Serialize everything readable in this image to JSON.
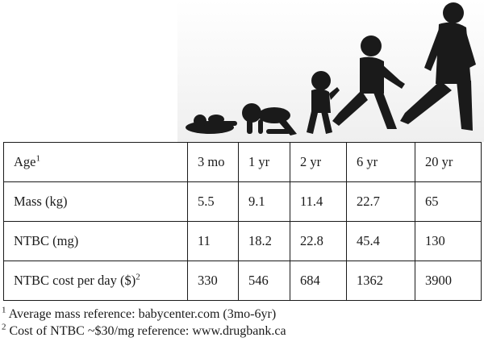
{
  "figure": {
    "icons": [
      "infant-lying-silhouette",
      "crawling-baby-silhouette",
      "toddler-silhouette",
      "child-running-silhouette",
      "adult-walking-silhouette"
    ]
  },
  "table": {
    "columns": [
      {
        "label": "Age",
        "sup": "1"
      },
      {
        "label": "3 mo"
      },
      {
        "label": "1 yr"
      },
      {
        "label": "2 yr"
      },
      {
        "label": "6 yr"
      },
      {
        "label": "20 yr"
      }
    ],
    "rows": [
      {
        "label": "Mass (kg)",
        "sup": "",
        "values": [
          "5.5",
          "9.1",
          "11.4",
          "22.7",
          "65"
        ]
      },
      {
        "label": "NTBC (mg)",
        "sup": "",
        "values": [
          "11",
          "18.2",
          "22.8",
          "45.4",
          "130"
        ]
      },
      {
        "label": "NTBC cost per day ($)",
        "sup": "2",
        "values": [
          "330",
          "546",
          "684",
          "1362",
          "3900"
        ]
      }
    ]
  },
  "footnotes": [
    {
      "sup": "1",
      "text": "Average mass reference: babycenter.com (3mo-6yr)"
    },
    {
      "sup": "2",
      "text": "Cost of NTBC ~$30/mg reference: www.drugbank.ca"
    }
  ]
}
